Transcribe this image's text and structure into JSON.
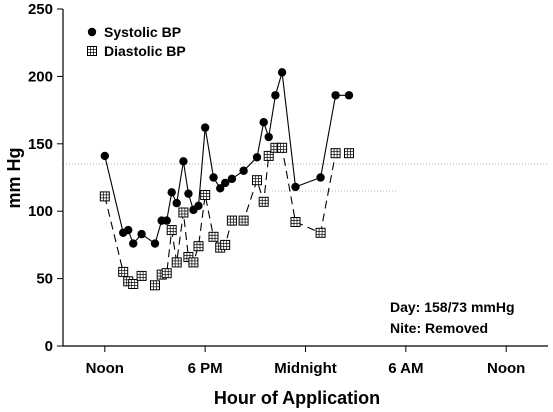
{
  "chart_data": {
    "type": "line",
    "title": "",
    "xlabel": "Hour of Application",
    "ylabel": "mm Hg",
    "ylim": [
      0,
      250
    ],
    "y_ticks": [
      0,
      50,
      100,
      150,
      200,
      250
    ],
    "x_ticks": [
      {
        "h": 12,
        "label": "Noon"
      },
      {
        "h": 18,
        "label": "6 PM"
      },
      {
        "h": 24,
        "label": "Midnight"
      },
      {
        "h": 30,
        "label": "6 AM"
      },
      {
        "h": 36,
        "label": "Noon"
      }
    ],
    "xlim_hours": [
      9.5,
      38.5
    ],
    "grid": false,
    "legend": "top-left",
    "reference_lines": [
      {
        "y": 135,
        "from_h": 9.5,
        "to_h": 38.5
      },
      {
        "y": 115,
        "from_h": 22.0,
        "to_h": 29.5
      }
    ],
    "series": [
      {
        "name": "Systolic BP",
        "marker": "filled-circle",
        "line_style": "solid",
        "color": "#000000",
        "x": [
          12.0,
          13.1,
          13.4,
          13.7,
          14.2,
          15.0,
          15.4,
          15.7,
          16.0,
          16.3,
          16.7,
          17.0,
          17.3,
          17.6,
          18.0,
          18.5,
          18.9,
          19.2,
          19.6,
          20.3,
          21.1,
          21.5,
          21.8,
          22.2,
          22.6,
          23.4,
          24.9,
          25.8,
          26.6
        ],
        "values": [
          141,
          84,
          86,
          76,
          83,
          76,
          93,
          93,
          114,
          106,
          137,
          113,
          101,
          104,
          162,
          125,
          117,
          121,
          124,
          130,
          140,
          166,
          155,
          186,
          203,
          118,
          125,
          186,
          186
        ]
      },
      {
        "name": "Diastolic BP",
        "marker": "hatched-square",
        "line_style": "dashed",
        "color": "#000000",
        "x": [
          12.0,
          13.1,
          13.4,
          13.7,
          14.2,
          15.0,
          15.4,
          15.7,
          16.0,
          16.3,
          16.7,
          17.0,
          17.3,
          17.6,
          18.0,
          18.5,
          18.9,
          19.2,
          19.6,
          20.3,
          21.1,
          21.5,
          21.8,
          22.2,
          22.6,
          23.4,
          24.9,
          25.8,
          26.6
        ],
        "values": [
          111,
          55,
          48,
          46,
          52,
          45,
          53,
          54,
          86,
          62,
          99,
          66,
          62,
          74,
          112,
          81,
          73,
          75,
          93,
          93,
          123,
          107,
          141,
          147,
          147,
          92,
          84,
          143,
          143
        ]
      }
    ],
    "annotations": [
      "Day: 158/73 mmHg",
      "Nite: Removed"
    ]
  }
}
